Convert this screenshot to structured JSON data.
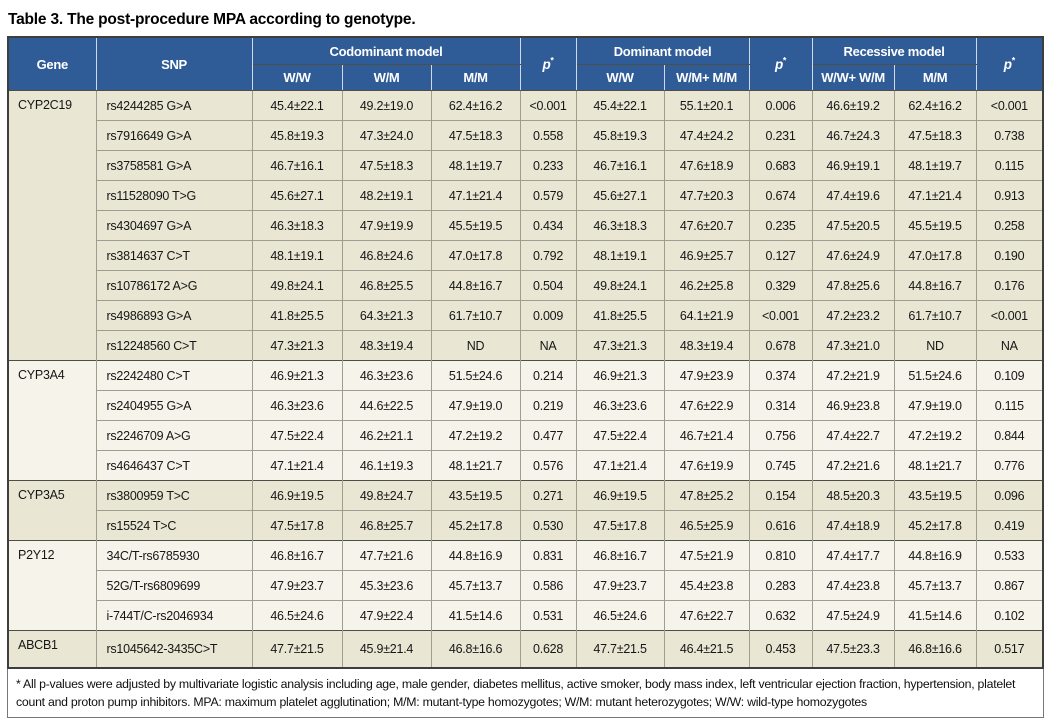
{
  "title": "Table 3. The post-procedure MPA according to genotype.",
  "colors": {
    "header_bg": "#2f5b96",
    "header_text": "#ffffff",
    "group_row_beige": "#e9e6d3",
    "group_row_light": "#f6f4ea",
    "outer_border": "#3e3e3e",
    "row_border": "#9d9d91"
  },
  "table": {
    "header": {
      "gene": "Gene",
      "snp": "SNP",
      "p_letter": "p",
      "p_star": "*",
      "groups": [
        {
          "label": "Codominant model",
          "cols": [
            "W/W",
            "W/M",
            "M/M"
          ]
        },
        {
          "label": "Dominant model",
          "cols": [
            "W/W",
            "W/M+ M/M"
          ]
        },
        {
          "label": "Recessive model",
          "cols": [
            "W/W+ W/M",
            "M/M"
          ]
        }
      ]
    },
    "groups": [
      {
        "gene": "CYP2C19",
        "rows": [
          {
            "snp": "rs4244285 G>A",
            "cells": [
              "45.4±22.1",
              "49.2±19.0",
              "62.4±16.2",
              "<0.001",
              "45.4±22.1",
              "55.1±20.1",
              "0.006",
              "46.6±19.2",
              "62.4±16.2",
              "<0.001"
            ]
          },
          {
            "snp": "rs7916649 G>A",
            "cells": [
              "45.8±19.3",
              "47.3±24.0",
              "47.5±18.3",
              "0.558",
              "45.8±19.3",
              "47.4±24.2",
              "0.231",
              "46.7±24.3",
              "47.5±18.3",
              "0.738"
            ]
          },
          {
            "snp": "rs3758581 G>A",
            "cells": [
              "46.7±16.1",
              "47.5±18.3",
              "48.1±19.7",
              "0.233",
              "46.7±16.1",
              "47.6±18.9",
              "0.683",
              "46.9±19.1",
              "48.1±19.7",
              "0.115"
            ]
          },
          {
            "snp": "rs11528090 T>G",
            "cells": [
              "45.6±27.1",
              "48.2±19.1",
              "47.1±21.4",
              "0.579",
              "45.6±27.1",
              "47.7±20.3",
              "0.674",
              "47.4±19.6",
              "47.1±21.4",
              "0.913"
            ]
          },
          {
            "snp": "rs4304697 G>A",
            "cells": [
              "46.3±18.3",
              "47.9±19.9",
              "45.5±19.5",
              "0.434",
              "46.3±18.3",
              "47.6±20.7",
              "0.235",
              "47.5±20.5",
              "45.5±19.5",
              "0.258"
            ]
          },
          {
            "snp": "rs3814637 C>T",
            "cells": [
              "48.1±19.1",
              "46.8±24.6",
              "47.0±17.8",
              "0.792",
              "48.1±19.1",
              "46.9±25.7",
              "0.127",
              "47.6±24.9",
              "47.0±17.8",
              "0.190"
            ]
          },
          {
            "snp": "rs10786172 A>G",
            "cells": [
              "49.8±24.1",
              "46.8±25.5",
              "44.8±16.7",
              "0.504",
              "49.8±24.1",
              "46.2±25.8",
              "0.329",
              "47.8±25.6",
              "44.8±16.7",
              "0.176"
            ]
          },
          {
            "snp": "rs4986893 G>A",
            "cells": [
              "41.8±25.5",
              "64.3±21.3",
              "61.7±10.7",
              "0.009",
              "41.8±25.5",
              "64.1±21.9",
              "<0.001",
              "47.2±23.2",
              "61.7±10.7",
              "<0.001"
            ]
          },
          {
            "snp": "rs12248560 C>T",
            "cells": [
              "47.3±21.3",
              "48.3±19.4",
              "ND",
              "NA",
              "47.3±21.3",
              "48.3±19.4",
              "0.678",
              "47.3±21.0",
              "ND",
              "NA"
            ]
          }
        ]
      },
      {
        "gene": "CYP3A4",
        "rows": [
          {
            "snp": "rs2242480 C>T",
            "cells": [
              "46.9±21.3",
              "46.3±23.6",
              "51.5±24.6",
              "0.214",
              "46.9±21.3",
              "47.9±23.9",
              "0.374",
              "47.2±21.9",
              "51.5±24.6",
              "0.109"
            ]
          },
          {
            "snp": "rs2404955 G>A",
            "cells": [
              "46.3±23.6",
              "44.6±22.5",
              "47.9±19.0",
              "0.219",
              "46.3±23.6",
              "47.6±22.9",
              "0.314",
              "46.9±23.8",
              "47.9±19.0",
              "0.115"
            ]
          },
          {
            "snp": "rs2246709 A>G",
            "cells": [
              "47.5±22.4",
              "46.2±21.1",
              "47.2±19.2",
              "0.477",
              "47.5±22.4",
              "46.7±21.4",
              "0.756",
              "47.4±22.7",
              "47.2±19.2",
              "0.844"
            ]
          },
          {
            "snp": "rs4646437 C>T",
            "cells": [
              "47.1±21.4",
              "46.1±19.3",
              "48.1±21.7",
              "0.576",
              "47.1±21.4",
              "47.6±19.9",
              "0.745",
              "47.2±21.6",
              "48.1±21.7",
              "0.776"
            ]
          }
        ]
      },
      {
        "gene": "CYP3A5",
        "rows": [
          {
            "snp": "rs3800959 T>C",
            "cells": [
              "46.9±19.5",
              "49.8±24.7",
              "43.5±19.5",
              "0.271",
              "46.9±19.5",
              "47.8±25.2",
              "0.154",
              "48.5±20.3",
              "43.5±19.5",
              "0.096"
            ]
          },
          {
            "snp": "rs15524 T>C",
            "cells": [
              "47.5±17.8",
              "46.8±25.7",
              "45.2±17.8",
              "0.530",
              "47.5±17.8",
              "46.5±25.9",
              "0.616",
              "47.4±18.9",
              "45.2±17.8",
              "0.419"
            ]
          }
        ]
      },
      {
        "gene": "P2Y12",
        "rows": [
          {
            "snp": "34C/T-rs6785930",
            "cells": [
              "46.8±16.7",
              "47.7±21.6",
              "44.8±16.9",
              "0.831",
              "46.8±16.7",
              "47.5±21.9",
              "0.810",
              "47.4±17.7",
              "44.8±16.9",
              "0.533"
            ]
          },
          {
            "snp": "52G/T-rs6809699",
            "cells": [
              "47.9±23.7",
              "45.3±23.6",
              "45.7±13.7",
              "0.586",
              "47.9±23.7",
              "45.4±23.8",
              "0.283",
              "47.4±23.8",
              "45.7±13.7",
              "0.867"
            ]
          },
          {
            "snp": "i-744T/C-rs2046934",
            "cells": [
              "46.5±24.6",
              "47.9±22.4",
              "41.5±14.6",
              "0.531",
              "46.5±24.6",
              "47.6±22.7",
              "0.632",
              "47.5±24.9",
              "41.5±14.6",
              "0.102"
            ]
          }
        ]
      },
      {
        "gene": "ABCB1",
        "rows": [
          {
            "snp": "rs1045642-3435C>T",
            "cells": [
              "47.7±21.5",
              "45.9±21.4",
              "46.8±16.6",
              "0.628",
              "47.7±21.5",
              "46.4±21.5",
              "0.453",
              "47.5±23.3",
              "46.8±16.6",
              "0.517"
            ]
          }
        ]
      }
    ],
    "footnote": "* All p-values were adjusted by multivariate logistic analysis including age, male gender, diabetes mellitus, active smoker, body mass index, left ventricular ejection fraction, hypertension, platelet count and proton pump inhibitors. MPA: maximum platelet agglutination; M/M: mutant-type homozygotes; W/M: mutant heterozygotes; W/W: wild-type homozygotes"
  }
}
